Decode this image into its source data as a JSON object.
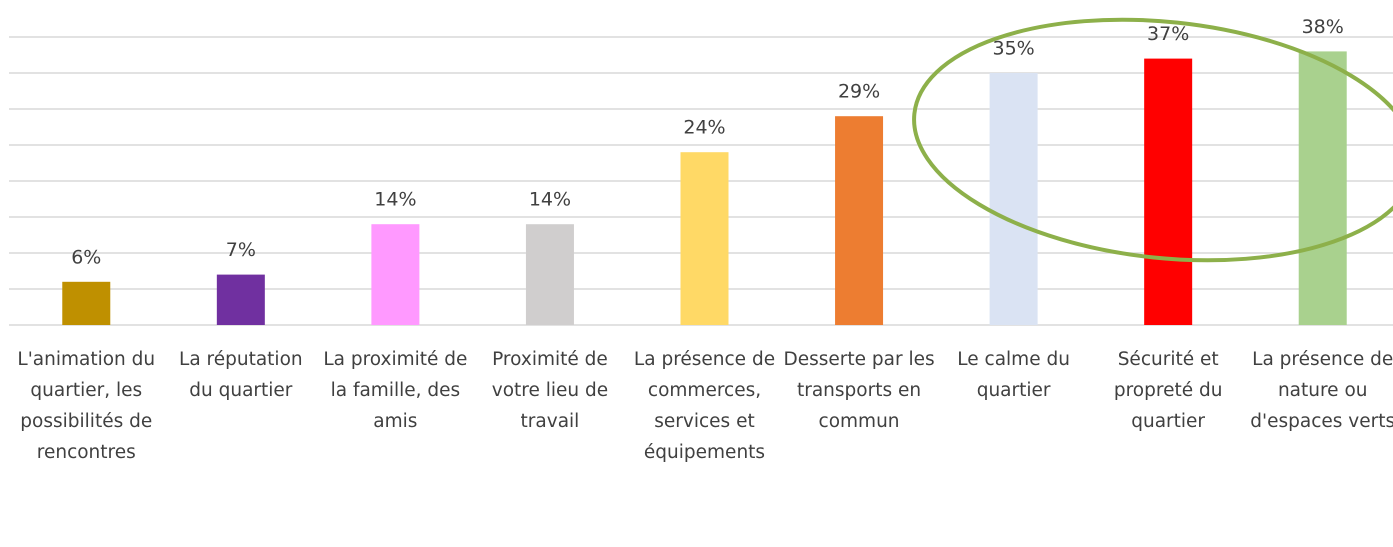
{
  "chart_data": {
    "type": "bar",
    "categories": [
      "L'animation du quartier, les possibilités de rencontres",
      "La réputation du quartier",
      "La proximité de la famille, des amis",
      "Proximité de votre lieu de travail",
      "La présence de commerces, services et équipements",
      "Desserte par les transports en commun",
      "Le calme du quartier",
      "Sécurité et propreté du quartier",
      "La présence de nature ou d'espaces verts"
    ],
    "values": [
      6,
      7,
      14,
      14,
      24,
      29,
      35,
      37,
      38
    ],
    "value_labels": [
      "6%",
      "7%",
      "14%",
      "14%",
      "24%",
      "29%",
      "35%",
      "37%",
      "38%"
    ],
    "colors": [
      "#bf9000",
      "#7030a0",
      "#ff99ff",
      "#d0cece",
      "#ffd966",
      "#ed7d31",
      "#dae3f3",
      "#ff0000",
      "#a9d18e"
    ],
    "ylim": [
      0,
      45
    ],
    "yticks": [
      0,
      5,
      10,
      15,
      20,
      25,
      30,
      35,
      40
    ],
    "grid": true
  }
}
